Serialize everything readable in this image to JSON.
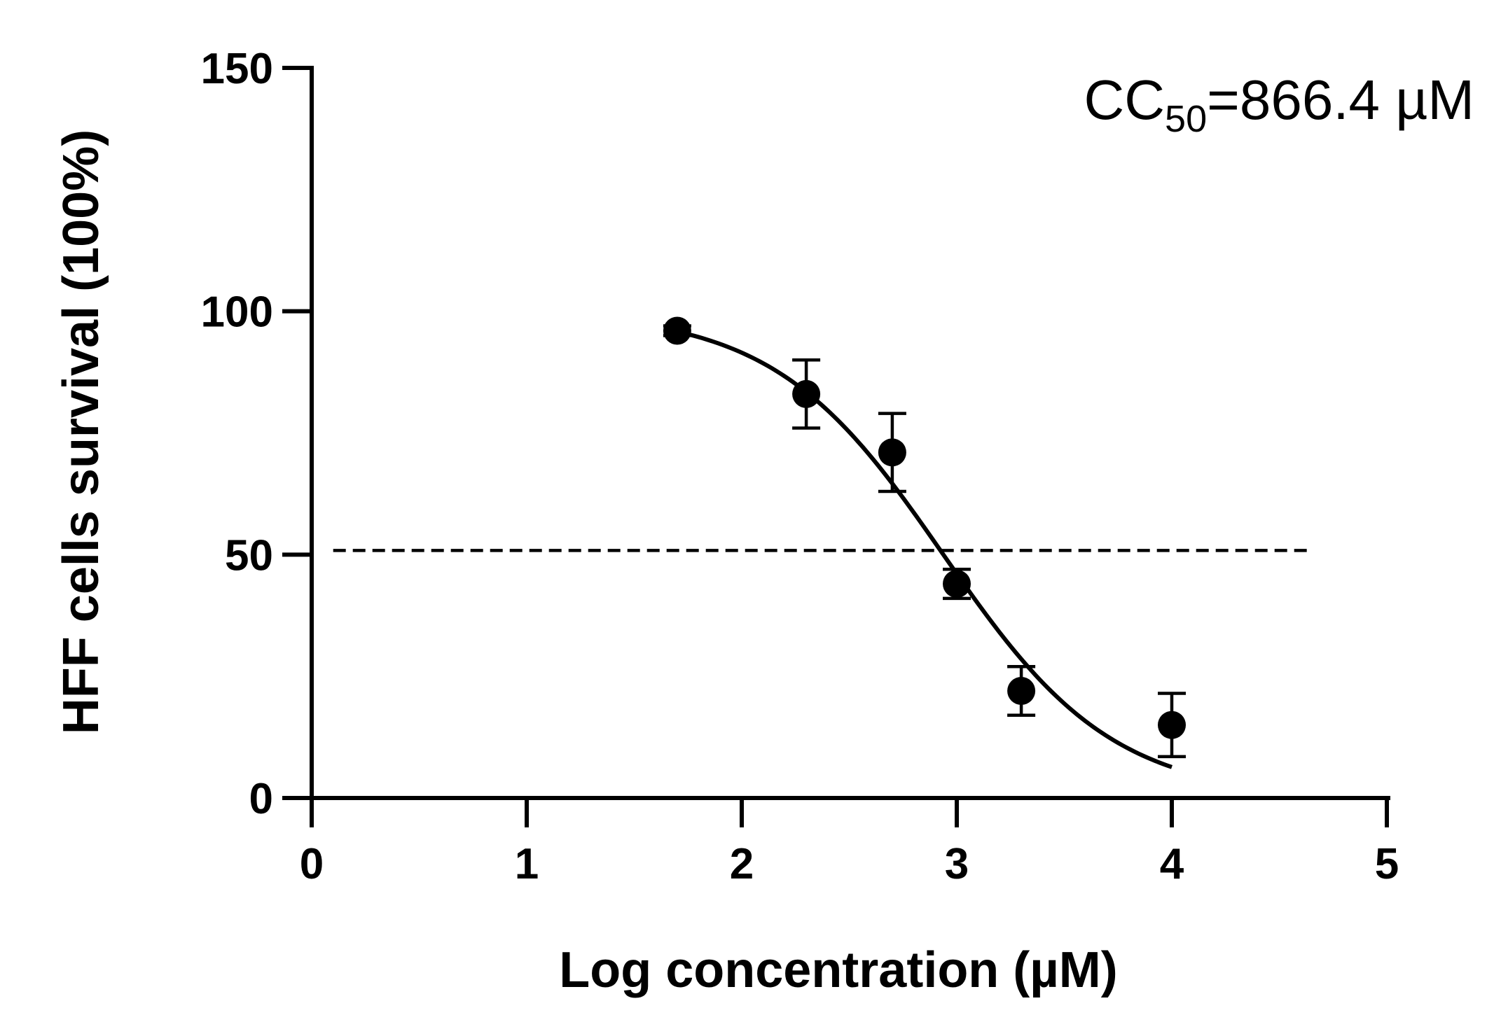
{
  "chart_data": {
    "type": "scatter",
    "title": "",
    "xlabel": "Log concentration (µM)",
    "ylabel": "HFF cells survival (100%)",
    "xlim": [
      0,
      5
    ],
    "ylim": [
      0,
      150
    ],
    "x_ticks": [
      "0",
      "1",
      "2",
      "3",
      "4",
      "5"
    ],
    "y_ticks": [
      "0",
      "50",
      "100",
      "150"
    ],
    "grid": false,
    "legend": "none",
    "annotation": {
      "prefix": "CC",
      "subscript": "50",
      "suffix": "=866.4 µM"
    },
    "points": [
      {
        "x": 1.7,
        "y": 96,
        "err": 1
      },
      {
        "x": 2.3,
        "y": 83,
        "err": 7
      },
      {
        "x": 2.7,
        "y": 71,
        "err": 8
      },
      {
        "x": 3.0,
        "y": 44,
        "err": 3
      },
      {
        "x": 3.3,
        "y": 22,
        "err": 5
      },
      {
        "x": 4.0,
        "y": 15,
        "err": 6.5
      }
    ],
    "fit_curve": {
      "model": "four-parameter logistic",
      "top": 100,
      "bottom": 0,
      "log_cc50": 2.9377,
      "hill_slope": -1.1,
      "x_range": [
        1.7,
        4.0
      ]
    },
    "reference_line": {
      "y": 50,
      "x_range": [
        0.1,
        4.65
      ],
      "style": "dashed"
    },
    "colors": {
      "marker": "#000000",
      "line": "#000000",
      "axis": "#000000"
    }
  }
}
